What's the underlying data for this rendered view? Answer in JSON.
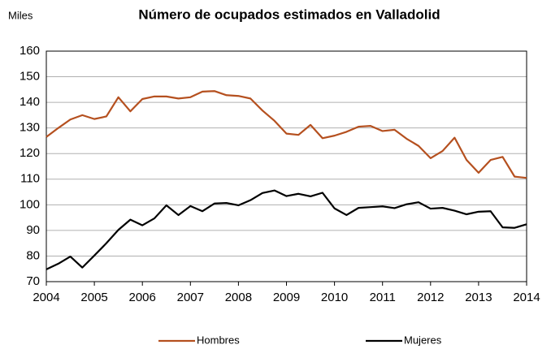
{
  "chart_data": {
    "type": "line",
    "title": "Número de ocupados estimados en  Valladolid",
    "y_unit": "Miles",
    "x": [
      2004,
      2004.25,
      2004.5,
      2004.75,
      2005,
      2005.25,
      2005.5,
      2005.75,
      2006,
      2006.25,
      2006.5,
      2006.75,
      2007,
      2007.25,
      2007.5,
      2007.75,
      2008,
      2008.25,
      2008.5,
      2008.75,
      2009,
      2009.25,
      2009.5,
      2009.75,
      2010,
      2010.25,
      2010.5,
      2010.75,
      2011,
      2011.25,
      2011.5,
      2011.75,
      2012,
      2012.25,
      2012.5,
      2012.75,
      2013,
      2013.25,
      2013.5,
      2013.75,
      2014
    ],
    "series": [
      {
        "name": "Hombres",
        "color": "#b5501f",
        "values": [
          126.5,
          130,
          133.3,
          135,
          133.5,
          134.5,
          142,
          136.5,
          141.3,
          142.3,
          142.3,
          141.5,
          142,
          144.2,
          144.4,
          142.8,
          142.5,
          141.5,
          136.8,
          132.8,
          127.8,
          127.3,
          131.2,
          126,
          127,
          128.5,
          130.5,
          130.8,
          128.8,
          129.3,
          125.8,
          123,
          118.2,
          121,
          126.2,
          117.5,
          112.5,
          117.5,
          118.7,
          111,
          110.5
        ]
      },
      {
        "name": "Mujeres",
        "color": "#000000",
        "values": [
          74.8,
          77,
          79.8,
          75.5,
          80.2,
          85,
          90.2,
          94.2,
          92,
          94.7,
          99.8,
          96,
          99.5,
          97.5,
          100.5,
          100.7,
          99.8,
          101.8,
          104.6,
          105.6,
          103.4,
          104.3,
          103.3,
          104.7,
          98.6,
          96,
          98.8,
          99.1,
          99.4,
          98.7,
          100.2,
          101,
          98.5,
          98.8,
          97.7,
          96.3,
          97.3,
          97.5,
          91.2,
          91,
          92.4
        ]
      }
    ],
    "xlim": [
      2004,
      2014
    ],
    "xticks": [
      2004,
      2005,
      2006,
      2007,
      2008,
      2009,
      2010,
      2011,
      2012,
      2013,
      2014
    ],
    "ylim": [
      70,
      160
    ],
    "yticks": [
      70,
      80,
      90,
      100,
      110,
      120,
      130,
      140,
      150,
      160
    ],
    "grid": true,
    "legend": "bottom"
  }
}
